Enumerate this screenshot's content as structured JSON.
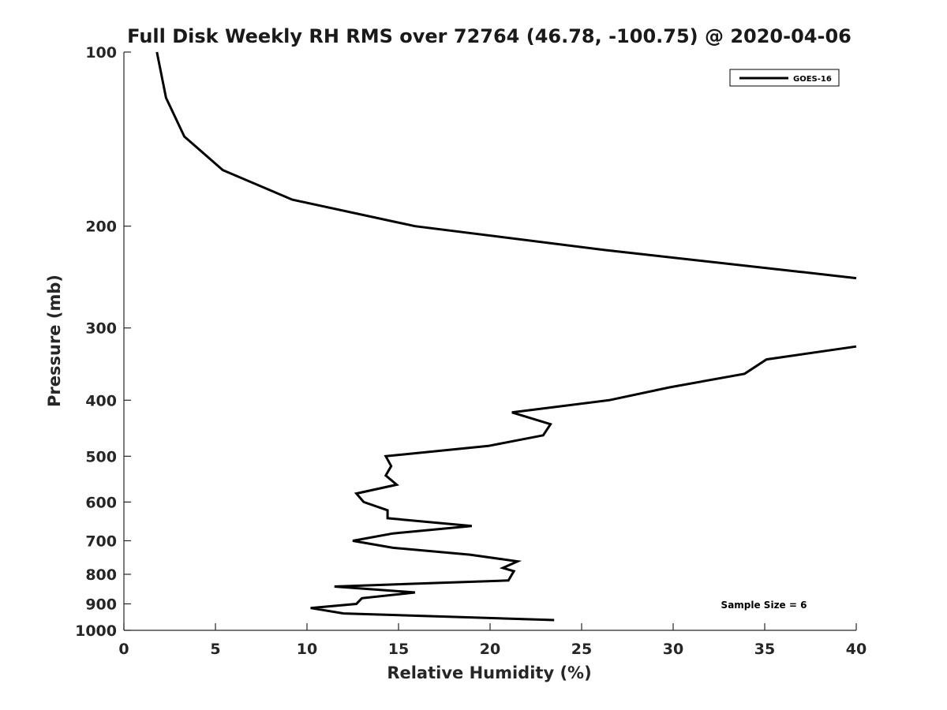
{
  "chart_data": {
    "type": "line",
    "title": "Full Disk Weekly RH RMS over 72764 (46.78, -100.75) @ 2020-04-06",
    "xlabel": "Relative Humidity (%)",
    "ylabel": "Pressure (mb)",
    "xlim": [
      0,
      40
    ],
    "ylim": [
      100,
      1000
    ],
    "y_scale": "log",
    "y_reversed": true,
    "x_ticks": [
      0,
      5,
      10,
      15,
      20,
      25,
      30,
      35,
      40
    ],
    "y_ticks": [
      100,
      200,
      300,
      400,
      500,
      600,
      700,
      800,
      900,
      1000
    ],
    "grid": false,
    "legend_position": "top-right",
    "annotation": "Sample Size = 6",
    "series": [
      {
        "name": "GOES-16",
        "color": "#000000",
        "segments": [
          [
            {
              "x": 1.8,
              "p": 100
            },
            {
              "x": 2.3,
              "p": 120
            },
            {
              "x": 3.3,
              "p": 140
            },
            {
              "x": 5.4,
              "p": 160
            },
            {
              "x": 9.2,
              "p": 180
            },
            {
              "x": 15.9,
              "p": 200
            },
            {
              "x": 26.3,
              "p": 220
            },
            {
              "x": 37.0,
              "p": 240
            },
            {
              "x": 40.0,
              "p": 246
            }
          ],
          [
            {
              "x": 40.0,
              "p": 323
            },
            {
              "x": 35.1,
              "p": 340
            },
            {
              "x": 33.9,
              "p": 360
            },
            {
              "x": 29.8,
              "p": 380
            },
            {
              "x": 26.5,
              "p": 400
            },
            {
              "x": 21.2,
              "p": 420
            },
            {
              "x": 23.3,
              "p": 440
            },
            {
              "x": 22.9,
              "p": 460
            },
            {
              "x": 19.9,
              "p": 480
            },
            {
              "x": 14.3,
              "p": 500
            },
            {
              "x": 14.6,
              "p": 520
            },
            {
              "x": 14.3,
              "p": 540
            },
            {
              "x": 14.9,
              "p": 560
            },
            {
              "x": 12.7,
              "p": 580
            },
            {
              "x": 13.1,
              "p": 600
            },
            {
              "x": 14.4,
              "p": 620
            },
            {
              "x": 14.4,
              "p": 640
            },
            {
              "x": 19.0,
              "p": 660
            },
            {
              "x": 14.7,
              "p": 680
            },
            {
              "x": 12.5,
              "p": 700
            },
            {
              "x": 14.7,
              "p": 720
            },
            {
              "x": 18.9,
              "p": 740
            },
            {
              "x": 21.5,
              "p": 760
            },
            {
              "x": 20.7,
              "p": 780
            },
            {
              "x": 21.3,
              "p": 790
            },
            {
              "x": 21.0,
              "p": 820
            },
            {
              "x": 11.5,
              "p": 840
            },
            {
              "x": 15.9,
              "p": 860
            },
            {
              "x": 13.0,
              "p": 880
            },
            {
              "x": 12.7,
              "p": 900
            },
            {
              "x": 10.2,
              "p": 915
            },
            {
              "x": 12.0,
              "p": 935
            },
            {
              "x": 23.5,
              "p": 960
            }
          ]
        ]
      }
    ]
  }
}
